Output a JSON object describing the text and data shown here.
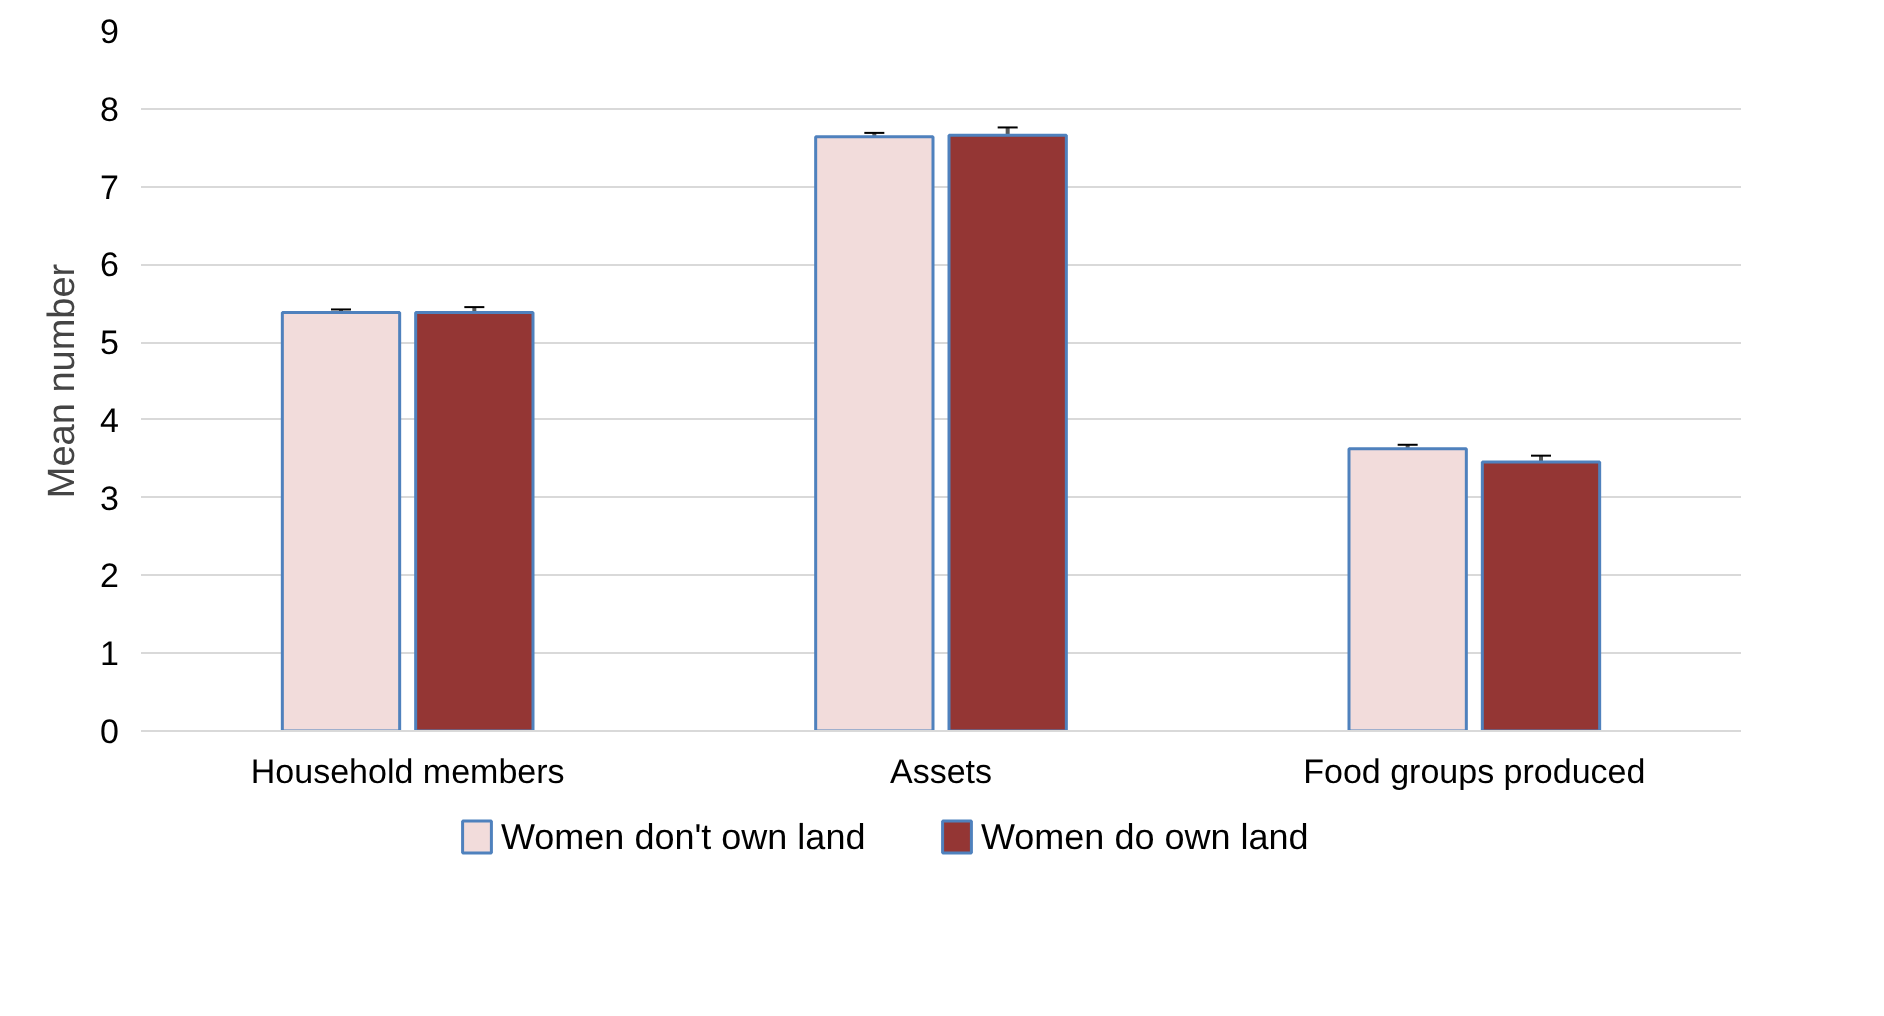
{
  "chart_data": {
    "type": "bar",
    "ylabel": "Mean number",
    "categories": [
      "Household members",
      "Assets",
      "Food groups produced"
    ],
    "series": [
      {
        "name": "Women don't own land",
        "color": "#f2dcdb",
        "values": [
          5.38,
          7.64,
          3.63
        ],
        "errors": [
          0.04,
          0.05,
          0.05
        ]
      },
      {
        "name": "Women do own land",
        "color": "#943634",
        "values": [
          5.38,
          7.66,
          3.46
        ],
        "errors": [
          0.07,
          0.1,
          0.08
        ]
      }
    ],
    "ylim": [
      0,
      9
    ],
    "yticks": [
      0,
      1,
      2,
      3,
      4,
      5,
      6,
      7,
      8,
      9
    ],
    "grid": "y",
    "legend": "bottom"
  }
}
